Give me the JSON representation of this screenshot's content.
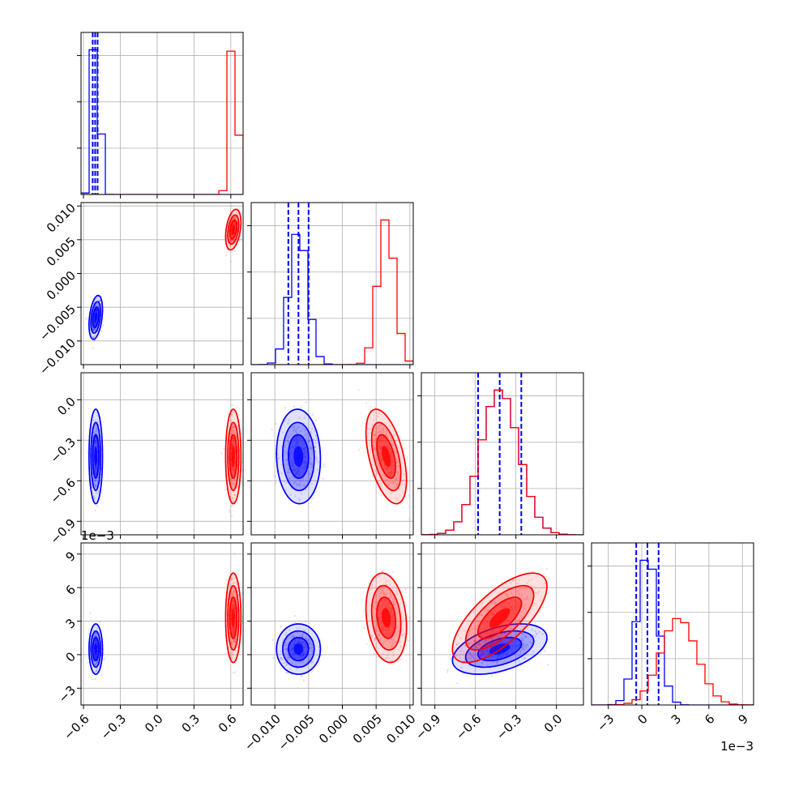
{
  "chart_data": {
    "type": "corner",
    "title": "",
    "parameters": [
      {
        "range": [
          -0.62,
          0.7
        ],
        "ticks": [
          -0.6,
          -0.3,
          0.0,
          0.3,
          0.6
        ],
        "tick_labels": [
          "−0.6",
          "−0.3",
          "0.0",
          "0.3",
          "0.6"
        ]
      },
      {
        "range": [
          -0.0135,
          0.0105
        ],
        "ticks": [
          -0.01,
          -0.005,
          0.0,
          0.005,
          0.01
        ],
        "tick_labels": [
          "−0.010",
          "−0.005",
          "0.000",
          "0.005",
          "0.010"
        ]
      },
      {
        "range": [
          -1.0,
          0.2
        ],
        "ticks": [
          -0.9,
          -0.6,
          -0.3,
          0.0
        ],
        "tick_labels": [
          "−0.9",
          "−0.6",
          "−0.3",
          "0.0"
        ]
      },
      {
        "range": [
          -4.5,
          10.0
        ],
        "ticks": [
          -3,
          0,
          3,
          6,
          9
        ],
        "tick_labels": [
          "−3",
          "0",
          "3",
          "6",
          "9"
        ],
        "offset_label": "1e−3"
      }
    ],
    "series": [
      {
        "color": "#0000ff",
        "mean": [
          -0.5,
          -0.0065,
          -0.42,
          0.5
        ],
        "std": [
          0.022,
          0.0013,
          0.14,
          0.9
        ],
        "corr": {
          "1-0": 0.35,
          "2-0": 0.0,
          "2-1": -0.05,
          "3-0": 0.0,
          "3-1": 0.0,
          "3-2": 0.45
        },
        "quantiles": [
          [
            -0.525,
            -0.505,
            -0.485
          ],
          [
            -0.008,
            -0.0065,
            -0.005
          ],
          [
            -0.58,
            -0.42,
            -0.26
          ],
          [
            -0.5,
            0.5,
            1.5
          ]
        ]
      },
      {
        "color": "#ff0000",
        "mean": [
          0.62,
          0.0065,
          -0.42,
          3.3
        ],
        "std": [
          0.025,
          0.0012,
          0.14,
          1.6
        ],
        "corr": {
          "1-0": 0.35,
          "2-0": 0.0,
          "2-1": -0.5,
          "3-0": 0.0,
          "3-1": -0.2,
          "3-2": 0.7
        }
      }
    ],
    "grid": true,
    "legend": "none"
  }
}
